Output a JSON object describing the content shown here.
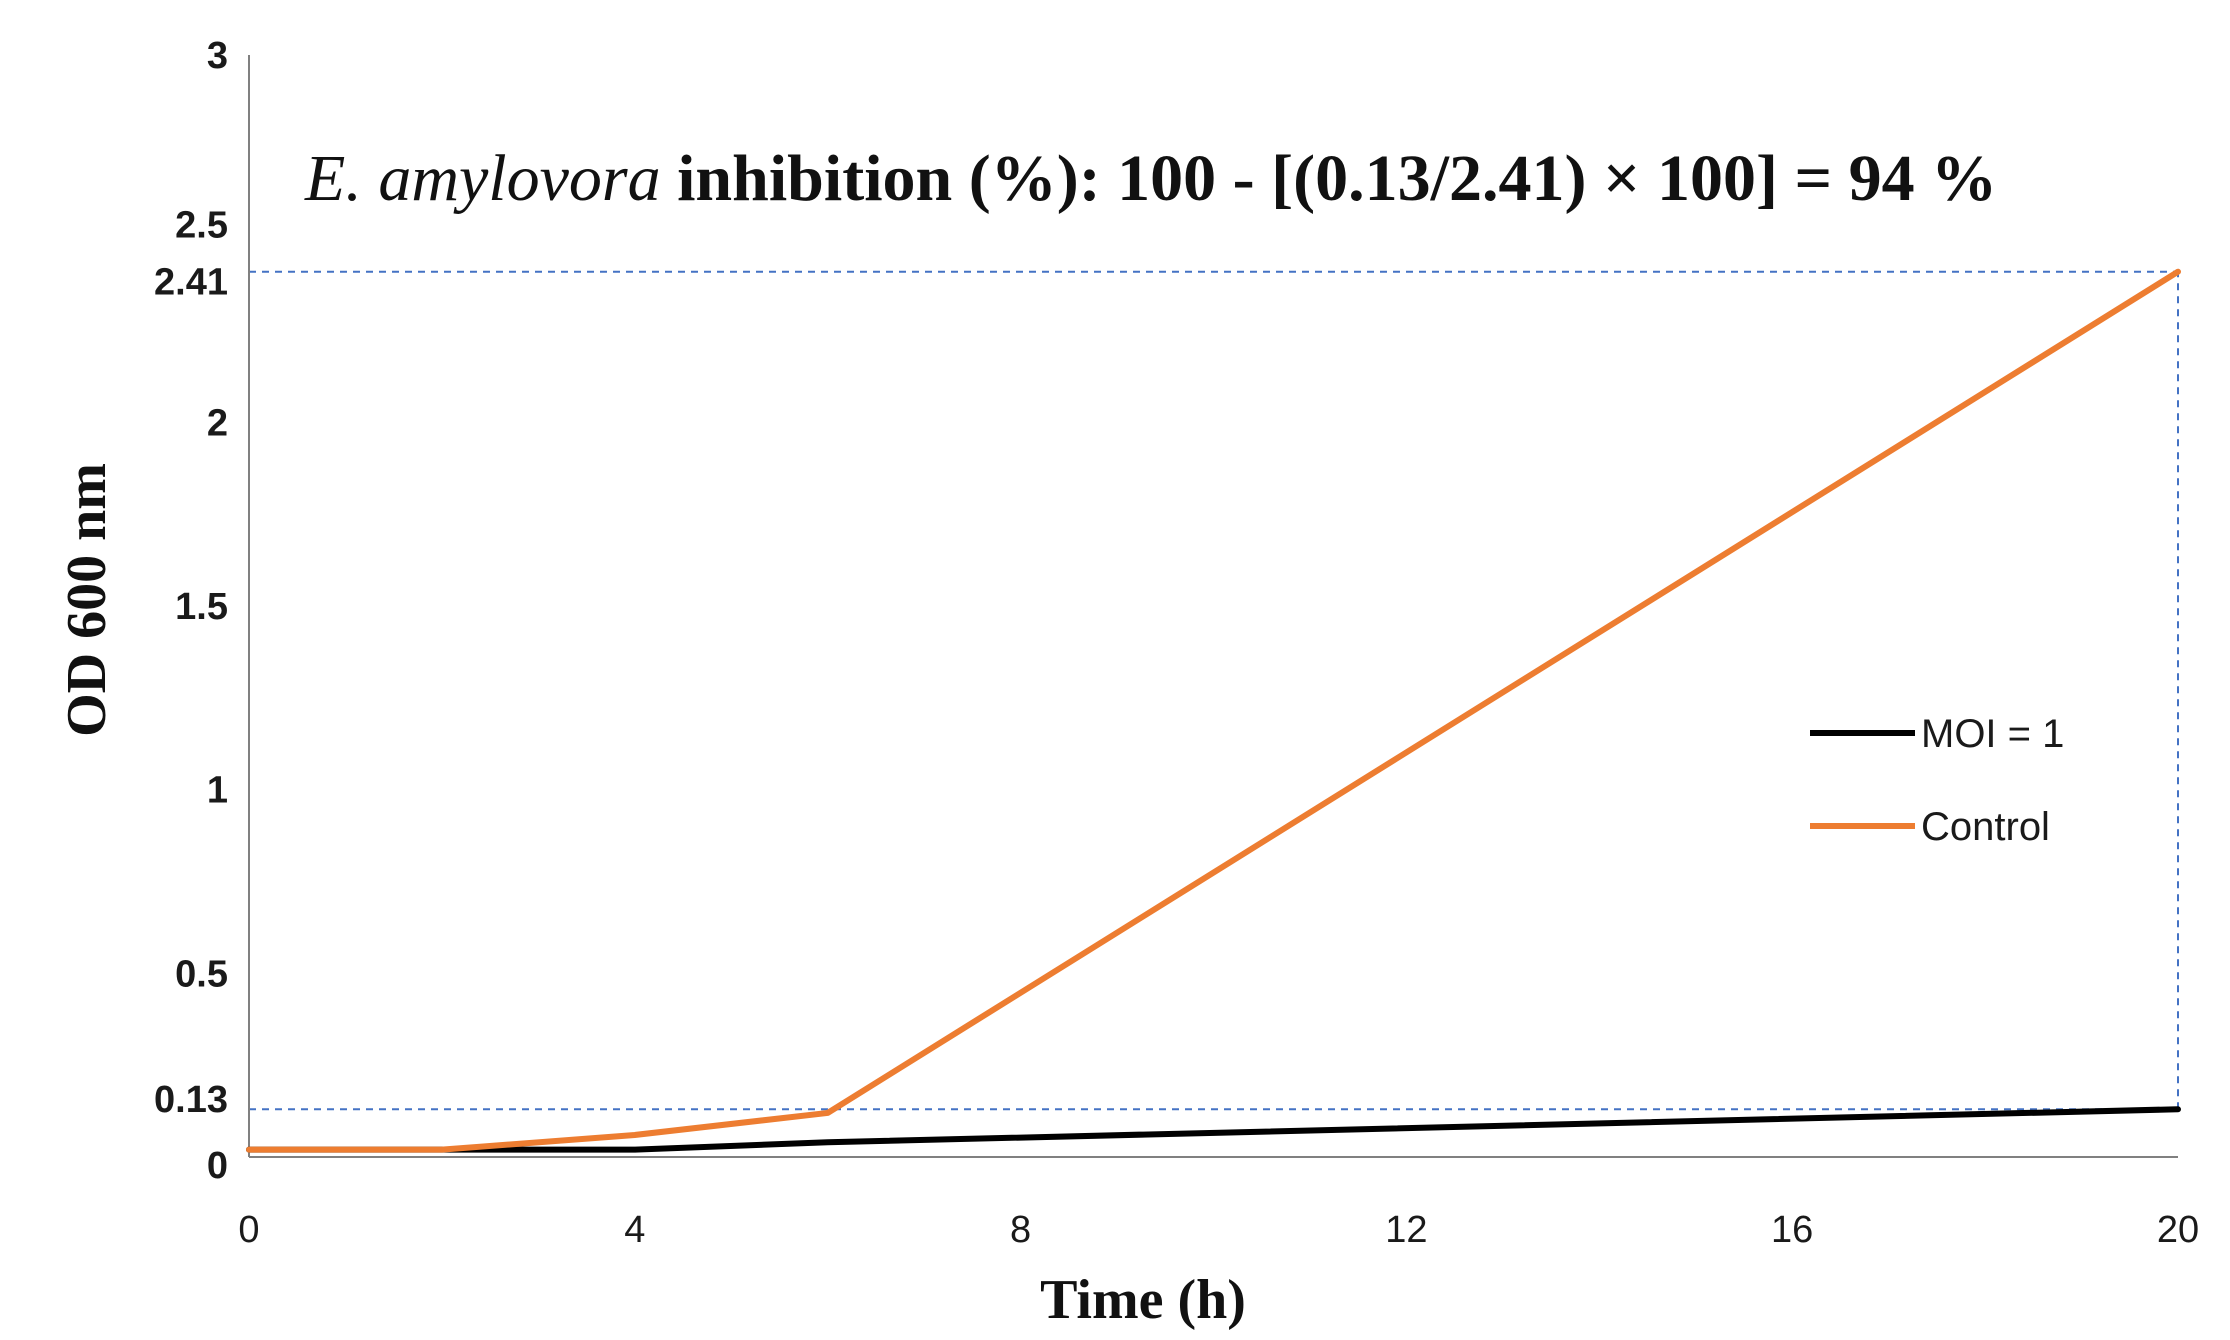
{
  "chart_data": {
    "type": "line",
    "title": "",
    "xlabel": "Time (h)",
    "ylabel": "OD 600 nm",
    "xlim": [
      0,
      20
    ],
    "ylim": [
      0,
      3
    ],
    "x_ticks": [
      "0",
      "4",
      "8",
      "12",
      "16",
      "20"
    ],
    "y_ticks": [
      "0",
      "0.13",
      "0.5",
      "1",
      "1.5",
      "2",
      "2.41",
      "2.5",
      "3"
    ],
    "grid": false,
    "legend_position": "right",
    "annotation": {
      "italic": "E. amylovora",
      "rest": " inhibition (%): 100 - [(0.13/2.41) × 100] = 94 %"
    },
    "series": [
      {
        "name": "MOI = 1",
        "color": "#000000",
        "x": [
          0,
          2,
          4,
          6,
          20
        ],
        "values": [
          0.02,
          0.02,
          0.02,
          0.04,
          0.13
        ]
      },
      {
        "name": "Control",
        "color": "#ed7d31",
        "x": [
          0,
          2,
          4,
          6,
          20
        ],
        "values": [
          0.02,
          0.02,
          0.06,
          0.12,
          2.41
        ]
      }
    ],
    "reference_lines": [
      {
        "from": [
          0,
          2.41
        ],
        "to": [
          20,
          2.41
        ],
        "color": "#4472c4",
        "style": "dashed"
      },
      {
        "from": [
          0,
          0.13
        ],
        "to": [
          20,
          0.13
        ],
        "color": "#4472c4",
        "style": "dashed"
      },
      {
        "from": [
          20,
          0.13
        ],
        "to": [
          20,
          2.41
        ],
        "color": "#4472c4",
        "style": "dashed"
      }
    ]
  }
}
